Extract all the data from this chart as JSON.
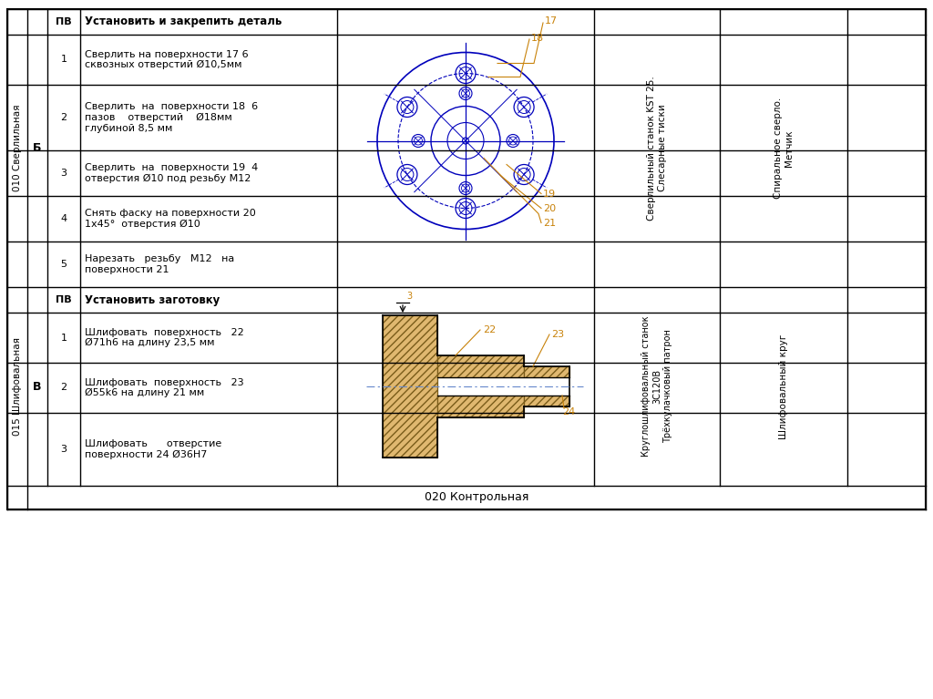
{
  "bg_color": "#ffffff",
  "border_color": "#000000",
  "title_bottom": "020 Контрольная",
  "row1_label": "010 Сверлильная",
  "row2_label": "015 Шлифовальная",
  "col_б": "Б",
  "col_в": "В",
  "row1_header": "Установить и закрепить деталь",
  "row1_ops": [
    {
      "num": "1",
      "text": "Сверлить на поверхности 17 6\nсквозных отверстий Ø10,5мм"
    },
    {
      "num": "2",
      "text": "Сверлить  на  поверхности 18  6\nпазов    отверстий    Ø18мм\nглубиной 8,5 мм"
    },
    {
      "num": "3",
      "text": "Сверлить  на  поверхности 19  4\nотверстия Ø10 под резьбу М12"
    },
    {
      "num": "4",
      "text": "Снять фаску на поверхности 20\n1х45°  отверстия Ø10"
    },
    {
      "num": "5",
      "text": "Нарезать   резьбу   М12   на\nповерхности 21"
    }
  ],
  "row1_equip": "Сверлильный станок KST 25.\nСлесарные тиски",
  "row1_tool": "Спиральное сверло.\nМетчик",
  "row2_header": "Установить заготовку",
  "row2_ops": [
    {
      "num": "1",
      "text": "Шлифовать  поверхность   22\nØ71h6 на длину 23,5 мм"
    },
    {
      "num": "2",
      "text": "Шлифовать  поверхность   23\nØ55k6 на длину 21 мм"
    },
    {
      "num": "3",
      "text": "Шлифовать      отверстие\nповерхности 24 Ø36H7"
    }
  ],
  "row2_equip": "Круглошлифовальный станок\n3С120В\nТрёхкулачковый патрон",
  "row2_tool": "Шлифовальный круг",
  "orange_color": "#C8820A",
  "blue_color": "#0000BB",
  "hatch_fc": "#E0B870",
  "hatch_ec": "#7A5C1A"
}
